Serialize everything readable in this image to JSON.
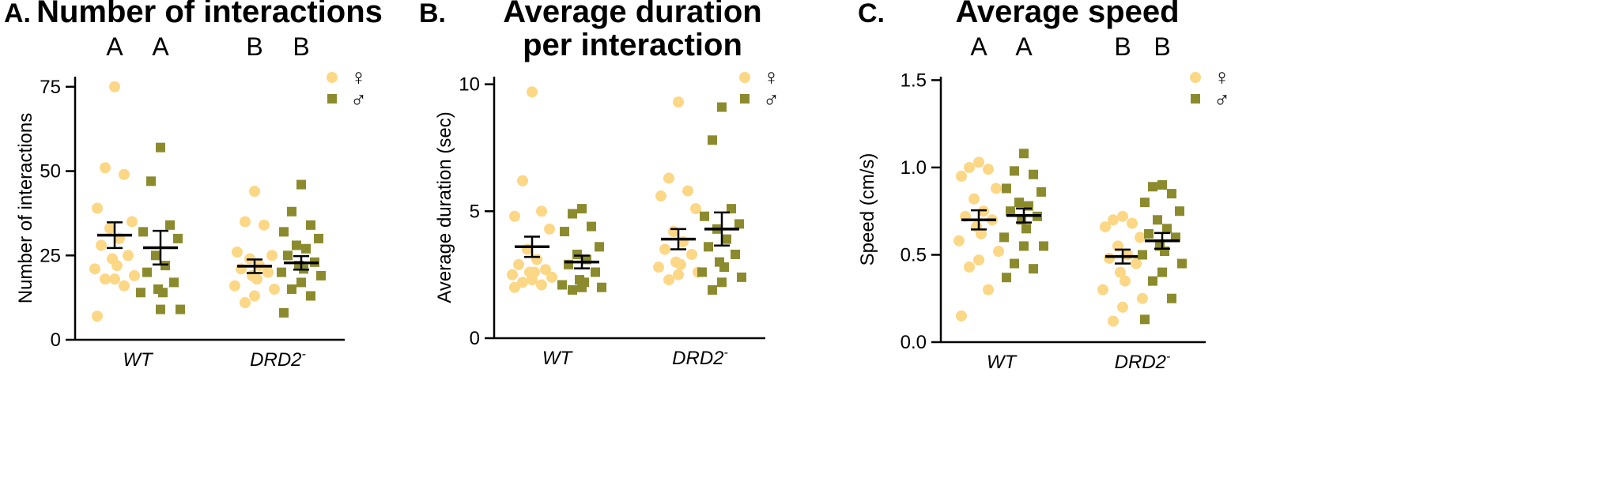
{
  "colors": {
    "female": "#fbd786",
    "male": "#8b8b2e",
    "axis": "#000000",
    "mean": "#000000"
  },
  "legend": {
    "female_symbol": "♀",
    "male_symbol": "♂"
  },
  "chart_data": [
    {
      "type": "scatter",
      "panel_letter": "A.",
      "title_lines": [
        "Number of interactions"
      ],
      "ylabel": "Number of interactions",
      "ylim": [
        0,
        78
      ],
      "yticks": [
        0,
        25,
        50,
        75
      ],
      "groups": [
        "WT",
        "DRD2"
      ],
      "group_superscript": [
        "",
        "-"
      ],
      "significance_letters": [
        "A",
        "A",
        "B",
        "B"
      ],
      "series": [
        {
          "name": "♀",
          "group": "WT",
          "values": [
            75,
            51,
            49,
            39,
            35,
            33,
            30,
            28,
            25,
            24,
            22,
            21,
            19,
            18,
            18,
            16,
            7
          ],
          "mean": 31,
          "sem": 3.8
        },
        {
          "name": "♂",
          "group": "WT",
          "values": [
            57,
            47,
            34,
            32,
            30,
            25,
            22,
            20,
            17,
            15,
            14,
            14,
            9,
            9
          ],
          "mean": 27.3,
          "sem": 5
        },
        {
          "name": "♀",
          "group": "DRD2",
          "values": [
            44,
            35,
            34,
            26,
            25,
            24,
            22,
            21,
            20,
            19,
            18,
            16,
            15,
            13,
            11
          ],
          "mean": 21.8,
          "sem": 2
        },
        {
          "name": "♂",
          "group": "DRD2",
          "values": [
            46,
            38,
            34,
            32,
            30,
            28,
            27,
            25,
            23,
            22,
            21,
            20,
            19,
            17,
            15,
            13,
            8
          ],
          "mean": 22.8,
          "sem": 2
        }
      ]
    },
    {
      "type": "scatter",
      "panel_letter": "B.",
      "title_lines": [
        "Average duration",
        "per interaction"
      ],
      "ylabel": "Average duration (sec)",
      "ylim": [
        0,
        10.3
      ],
      "yticks": [
        0,
        5,
        10
      ],
      "groups": [
        "WT",
        "DRD2"
      ],
      "group_superscript": [
        "",
        "-"
      ],
      "significance_letters": [],
      "series": [
        {
          "name": "♀",
          "group": "WT",
          "values": [
            9.7,
            6.2,
            5.0,
            4.8,
            4.3,
            3.5,
            3.1,
            2.9,
            2.7,
            2.6,
            2.6,
            2.5,
            2.4,
            2.3,
            2.2,
            2.1,
            2.0
          ],
          "mean": 3.6,
          "sem": 0.4
        },
        {
          "name": "♂",
          "group": "WT",
          "values": [
            5.1,
            4.9,
            4.4,
            4.2,
            3.6,
            3.3,
            3.1,
            2.9,
            2.6,
            2.3,
            2.2,
            2.1,
            2.0,
            2.0,
            1.9
          ],
          "mean": 3.0,
          "sem": 0.25
        },
        {
          "name": "♀",
          "group": "DRD2",
          "values": [
            9.3,
            6.3,
            5.8,
            5.6,
            5.1,
            4.2,
            3.8,
            3.5,
            3.3,
            3.0,
            2.9,
            2.8,
            2.6,
            2.5,
            2.3
          ],
          "mean": 3.9,
          "sem": 0.4
        },
        {
          "name": "♂",
          "group": "DRD2",
          "values": [
            9.1,
            7.8,
            5.1,
            4.8,
            4.5,
            4.3,
            3.9,
            3.6,
            3.3,
            3.0,
            2.8,
            2.6,
            2.4,
            2.2,
            1.9
          ],
          "mean": 4.3,
          "sem": 0.65
        }
      ]
    },
    {
      "type": "scatter",
      "panel_letter": "C.",
      "title_lines": [
        "Average speed"
      ],
      "ylabel": "Speed (cm/s)",
      "ylim": [
        0,
        1.52
      ],
      "yticks": [
        0.0,
        0.5,
        1.0,
        1.5
      ],
      "tick_decimals": 1,
      "groups": [
        "WT",
        "DRD2"
      ],
      "group_superscript": [
        "",
        "-"
      ],
      "significance_letters": [
        "A",
        "A",
        "B",
        "B"
      ],
      "series": [
        {
          "name": "♀",
          "group": "WT",
          "values": [
            1.03,
            1.0,
            0.99,
            0.95,
            0.88,
            0.82,
            0.75,
            0.72,
            0.7,
            0.66,
            0.62,
            0.58,
            0.52,
            0.47,
            0.43,
            0.3,
            0.15
          ],
          "mean": 0.7,
          "sem": 0.055
        },
        {
          "name": "♂",
          "group": "WT",
          "values": [
            1.08,
            0.98,
            0.96,
            0.88,
            0.86,
            0.8,
            0.78,
            0.75,
            0.72,
            0.7,
            0.65,
            0.6,
            0.55,
            0.55,
            0.45,
            0.42,
            0.37
          ],
          "mean": 0.725,
          "sem": 0.04
        },
        {
          "name": "♀",
          "group": "DRD2",
          "values": [
            0.72,
            0.7,
            0.68,
            0.66,
            0.6,
            0.55,
            0.5,
            0.48,
            0.45,
            0.4,
            0.35,
            0.3,
            0.25,
            0.2,
            0.12
          ],
          "mean": 0.49,
          "sem": 0.04
        },
        {
          "name": "♂",
          "group": "DRD2",
          "values": [
            0.9,
            0.89,
            0.85,
            0.8,
            0.75,
            0.7,
            0.65,
            0.62,
            0.6,
            0.55,
            0.52,
            0.5,
            0.45,
            0.4,
            0.35,
            0.25,
            0.13
          ],
          "mean": 0.58,
          "sem": 0.045
        }
      ]
    }
  ]
}
